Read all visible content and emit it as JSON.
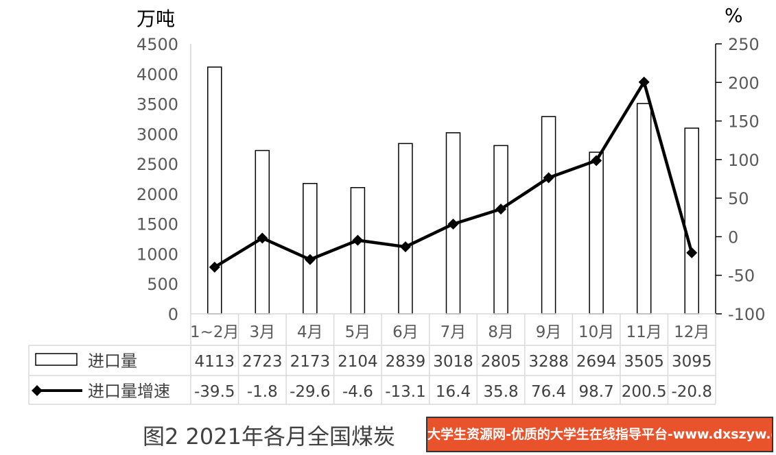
{
  "chart_data": {
    "type": "bar",
    "categories": [
      "1~2月",
      "3月",
      "4月",
      "5月",
      "6月",
      "7月",
      "8月",
      "9月",
      "10月",
      "11月",
      "12月"
    ],
    "series": [
      {
        "name": "进口量",
        "type": "bar",
        "axis": "left",
        "values": [
          4113,
          2723,
          2173,
          2104,
          2839,
          3018,
          2805,
          3288,
          2694,
          3505,
          3095
        ]
      },
      {
        "name": "进口量增速",
        "type": "line",
        "axis": "right",
        "values": [
          -39.5,
          -1.8,
          -29.6,
          -4.6,
          -13.1,
          16.4,
          35.8,
          76.4,
          98.7,
          200.5,
          -20.8
        ]
      }
    ],
    "display_values": {
      "bars": [
        "4113",
        "2723",
        "2173",
        "2104",
        "2839",
        "3018",
        "2805",
        "3288",
        "2694",
        "3505",
        "3095"
      ],
      "line": [
        "-39.5",
        "-1.8",
        "-29.6",
        "-4.6",
        "-13.1",
        "16.4",
        "35.8",
        "76.4",
        "98.7",
        "200.5",
        "-20.8"
      ]
    },
    "y_left": {
      "label": "万吨",
      "ylim": [
        0,
        4500
      ],
      "ticks": [
        "0",
        "500",
        "1000",
        "1500",
        "2000",
        "2500",
        "3000",
        "3500",
        "4000",
        "4500"
      ]
    },
    "y_right": {
      "label": "%",
      "ylim": [
        -100,
        250
      ],
      "ticks": [
        "-100",
        "-50",
        "0",
        "50",
        "100",
        "150",
        "200",
        "250"
      ]
    },
    "legend": "data-table",
    "grid": false,
    "colors": {
      "bar_fill": "#ffffff",
      "bar_stroke": "#000000",
      "line": "#000000",
      "marker": "#000000"
    }
  },
  "caption": "图2 2021年各月全国煤炭",
  "watermark": "大学生资源网-优质的大学生在线指导平台-www.dxszyw.cn"
}
